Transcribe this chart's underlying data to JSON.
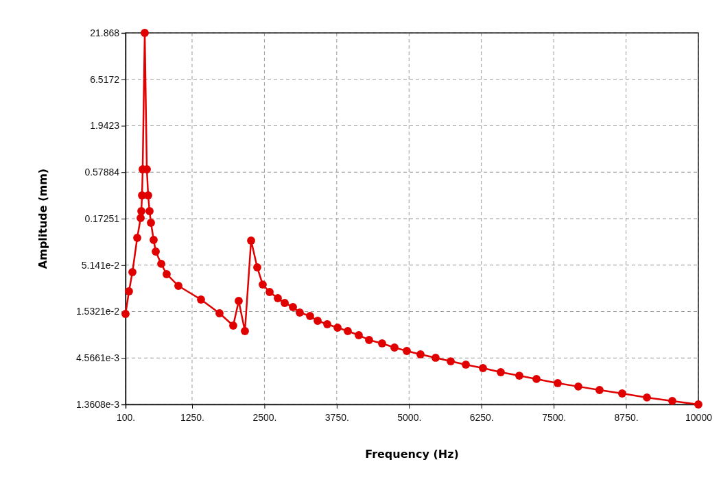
{
  "chart_data": {
    "type": "line",
    "xlabel": "Frequency (Hz)",
    "ylabel": "Amplitude (mm)",
    "log": "y",
    "grid": true,
    "marker": "circle",
    "line_style": "solid",
    "xlim": [
      100,
      10000
    ],
    "xticks": [
      {
        "value": 100,
        "label": "100."
      },
      {
        "value": 1250,
        "label": "1250."
      },
      {
        "value": 2500,
        "label": "2500."
      },
      {
        "value": 3750,
        "label": "3750."
      },
      {
        "value": 5000,
        "label": "5000."
      },
      {
        "value": 6250,
        "label": "6250."
      },
      {
        "value": 7500,
        "label": "7500."
      },
      {
        "value": 8750,
        "label": "8750."
      },
      10000
    ],
    "ylim": [
      0.0013608,
      21.868
    ],
    "yticks": [
      {
        "value": 0.0013608,
        "label": "1.3608e-3"
      },
      {
        "value": 0.0045661,
        "label": "4.5661e-3"
      },
      {
        "value": 0.015321,
        "label": "1.5321e-2"
      },
      {
        "value": 0.05141,
        "label": "5.141e-2"
      },
      0.17251,
      0.57884,
      1.9423,
      6.5172,
      21.868
    ],
    "series": [
      {
        "color": "#e00000",
        "x": [
          100,
          159,
          219,
          302,
          361,
          373,
          385,
          396,
          432,
          468,
          491,
          515,
          539,
          586,
          622,
          717,
          811,
          1013,
          1404,
          1724,
          1961,
          2056,
          2163,
          2270,
          2376,
          2471,
          2590,
          2732,
          2851,
          2993,
          3111,
          3289,
          3420,
          3586,
          3764,
          3941,
          4131,
          4309,
          4534,
          4748,
          4961,
          5198,
          5459,
          5720,
          5981,
          6277,
          6585,
          6905,
          7202,
          7569,
          7925,
          8292,
          8683,
          9111,
          9549,
          10000
        ],
        "values": [
          0.01439,
          0.02596,
          0.0428,
          0.1046,
          0.1757,
          0.21,
          0.3167,
          0.6246,
          21.868,
          0.6246,
          0.3167,
          0.21,
          0.155,
          0.0992,
          0.0732,
          0.0531,
          0.0406,
          0.02996,
          0.02096,
          0.01466,
          0.01063,
          0.02021,
          0.00921,
          0.0974,
          0.0485,
          0.031,
          0.0255,
          0.02171,
          0.01916,
          0.01721,
          0.01492,
          0.01364,
          0.01204,
          0.01101,
          0.01007,
          0.00921,
          0.00827,
          0.0073,
          0.00668,
          0.006,
          0.00548,
          0.00502,
          0.00459,
          0.00419,
          0.00384,
          0.00351,
          0.00315,
          0.00288,
          0.00264,
          0.00237,
          0.00217,
          0.00198,
          0.00181,
          0.00163,
          0.00149,
          0.0013608
        ]
      }
    ]
  }
}
